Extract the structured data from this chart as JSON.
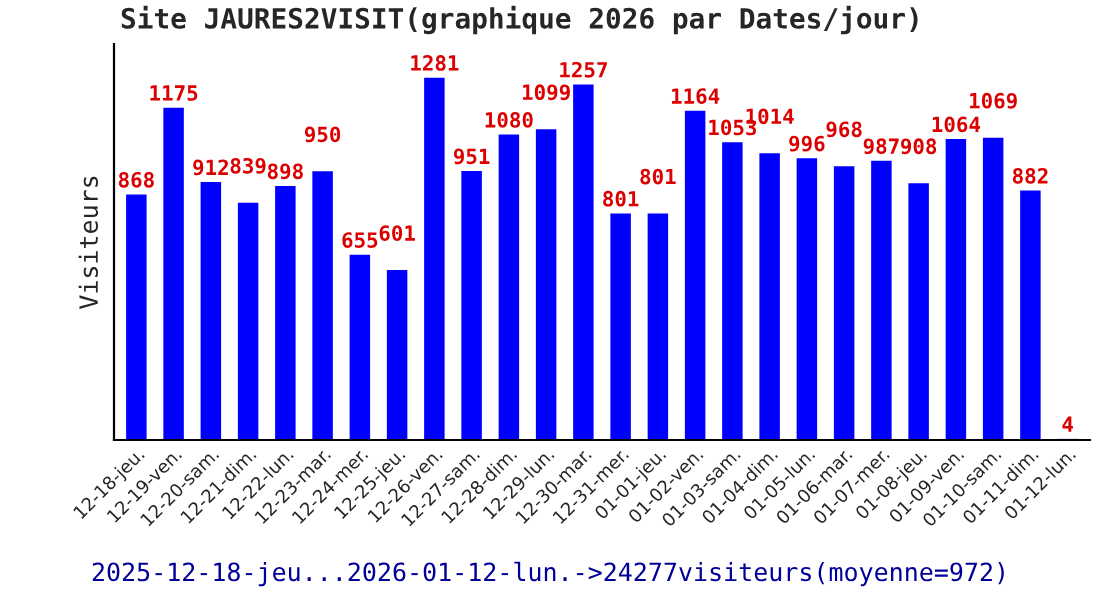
{
  "chart_data": {
    "type": "bar",
    "title": "Site JAURES2VISIT(graphique 2026 par Dates/jour)",
    "ylabel": "Visiteurs",
    "categories": [
      "12-18-jeu.",
      "12-19-ven.",
      "12-20-sam.",
      "12-21-dim.",
      "12-22-lun.",
      "12-23-mar.",
      "12-24-mer.",
      "12-25-jeu.",
      "12-26-ven.",
      "12-27-sam.",
      "12-28-dim.",
      "12-29-lun.",
      "12-30-mar.",
      "12-31-mer.",
      "01-01-jeu.",
      "01-02-ven.",
      "01-03-sam.",
      "01-04-dim.",
      "01-05-lun.",
      "01-06-mar.",
      "01-07-mer.",
      "01-08-jeu.",
      "01-09-ven.",
      "01-10-sam.",
      "01-11-dim.",
      "01-12-lun."
    ],
    "values": [
      868,
      1175,
      912,
      839,
      898,
      950,
      655,
      601,
      1281,
      951,
      1080,
      1099,
      1257,
      801,
      801,
      1164,
      1053,
      1014,
      996,
      968,
      987,
      908,
      1064,
      1069,
      882,
      4
    ],
    "color": "#0000ff",
    "data_labels": true,
    "ylim": [
      0,
      1400
    ],
    "tick_labels": "x",
    "grid": false,
    "legend": false,
    "annotations": [
      "2025-12-18-jeu...2026-01-12-lun.->24277visiteurs(moyenne=972)"
    ]
  }
}
